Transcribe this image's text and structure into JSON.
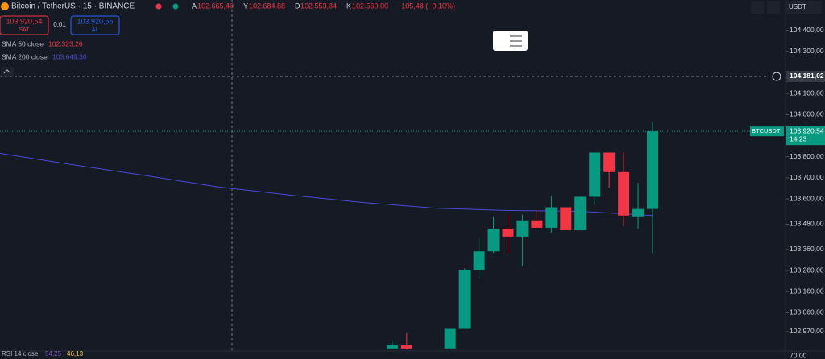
{
  "header": {
    "symbol": "Bitcoin / TetherUS · 15 · BINANCE",
    "ohlc": [
      {
        "key": "A",
        "value": "102.665,40"
      },
      {
        "key": "Y",
        "value": "102.684,88"
      },
      {
        "key": "D",
        "value": "102.553,84"
      },
      {
        "key": "K",
        "value": "102.560,00"
      }
    ],
    "change": "−105,48 (−0,10%)",
    "currency": "USDT"
  },
  "trade": {
    "sell_price": "103.920,54",
    "sell": "SAT",
    "quantity": "0,01",
    "buy_price": "103.920,55",
    "buy": "AL"
  },
  "indicators": [
    {
      "name": "SMA 50 close",
      "value": "102.323,26",
      "color": "#f23645"
    },
    {
      "name": "SMA 200 close",
      "value": "103.649,30",
      "color": "#4a4ad8"
    }
  ],
  "rsi": {
    "name": "RSI 14 close",
    "values": [
      "54,25",
      "46,13"
    ],
    "level": "70,00"
  },
  "chart_data": {
    "type": "candlestick",
    "up_color": "#089981",
    "down_color": "#f23645",
    "ylim": [
      102878,
      104544
    ],
    "yticks": [
      {
        "value": 104400,
        "label": "104.400,00"
      },
      {
        "value": 104300,
        "label": "104.300,00"
      },
      {
        "value": 104100,
        "label": "104.100,00"
      },
      {
        "value": 104000,
        "label": "104.000,00"
      },
      {
        "value": 103800,
        "label": "103.800,00"
      },
      {
        "value": 103700,
        "label": "103.700,00"
      },
      {
        "value": 103600,
        "label": "103.600,00"
      },
      {
        "value": 103480,
        "label": "103.480,00"
      },
      {
        "value": 103360,
        "label": "103.360,00"
      },
      {
        "value": 103260,
        "label": "103.260,00"
      },
      {
        "value": 103160,
        "label": "103.160,00"
      },
      {
        "value": 103060,
        "label": "103.060,00"
      },
      {
        "value": 102970,
        "label": "102.970,00"
      }
    ],
    "crosshair": {
      "value": 104181.02,
      "label": "104.181,02"
    },
    "last_price": {
      "symbol": "BTCUSDT",
      "value": 103920.54,
      "label": "103.920,54",
      "countdown": "14:23"
    },
    "candles": [
      {
        "open": 102890,
        "high": 102924,
        "low": 102890,
        "close": 102905
      },
      {
        "open": 102905,
        "high": 102963,
        "low": 102885,
        "close": 102890
      },
      null,
      null,
      {
        "open": 102890,
        "high": 102983,
        "low": 102885,
        "close": 102983
      },
      {
        "open": 102983,
        "high": 103270,
        "low": 102983,
        "close": 103262
      },
      {
        "open": 103262,
        "high": 103413,
        "low": 103227,
        "close": 103351
      },
      {
        "open": 103351,
        "high": 103517,
        "low": 103343,
        "close": 103459
      },
      {
        "open": 103459,
        "high": 103525,
        "low": 103343,
        "close": 103421
      },
      {
        "open": 103421,
        "high": 103525,
        "low": 103281,
        "close": 103498
      },
      {
        "open": 103498,
        "high": 103548,
        "low": 103455,
        "close": 103463
      },
      {
        "open": 103463,
        "high": 103614,
        "low": 103440,
        "close": 103560
      },
      {
        "open": 103560,
        "high": 103560,
        "low": 103451,
        "close": 103451
      },
      {
        "open": 103451,
        "high": 103610,
        "low": 103451,
        "close": 103610
      },
      {
        "open": 103610,
        "high": 103820,
        "low": 103576,
        "close": 103820
      },
      {
        "open": 103820,
        "high": 103820,
        "low": 103653,
        "close": 103727
      },
      {
        "open": 103727,
        "high": 103820,
        "low": 103471,
        "close": 103521
      },
      {
        "open": 103517,
        "high": 103676,
        "low": 103459,
        "close": 103552
      },
      {
        "open": 103552,
        "high": 103963,
        "low": 103343,
        "close": 103920.54
      }
    ],
    "sma200": {
      "color": "#4a4ad8",
      "values": [
        103816,
        103762,
        103711,
        103657,
        103618,
        103583,
        103556,
        103545,
        103541,
        103521
      ]
    }
  }
}
